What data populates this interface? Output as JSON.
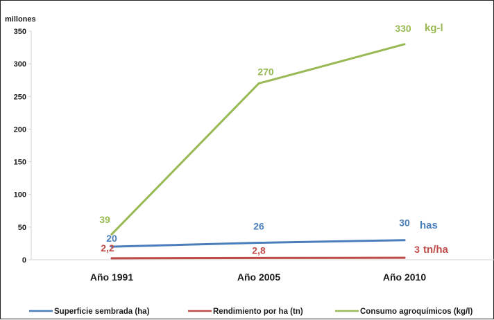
{
  "chart_data": {
    "type": "line",
    "unit_label": "millones",
    "categories": [
      "Año 1991",
      "Año 2005",
      "Año 2010"
    ],
    "ylim": [
      0,
      350
    ],
    "yticks": [
      0,
      50,
      100,
      150,
      200,
      250,
      300,
      350
    ],
    "grid": false,
    "legend_position": "bottom",
    "series": [
      {
        "name": "Superficie sembrada (ha)",
        "color": "#4a7ebb",
        "values": [
          20,
          26,
          30
        ],
        "labels": [
          "20",
          "26",
          "30"
        ],
        "end_label": "has"
      },
      {
        "name": "Rendimiento por ha (tn)",
        "color": "#be4b48",
        "values": [
          2.2,
          2.8,
          3
        ],
        "labels": [
          "2,2",
          "2,8",
          "3"
        ],
        "end_label": "tn/ha"
      },
      {
        "name": "Consumo agroquímicos (kg/l)",
        "color": "#98b954",
        "values": [
          39,
          270,
          330
        ],
        "labels": [
          "39",
          "270",
          "330"
        ],
        "end_label": "kg-l"
      }
    ]
  }
}
